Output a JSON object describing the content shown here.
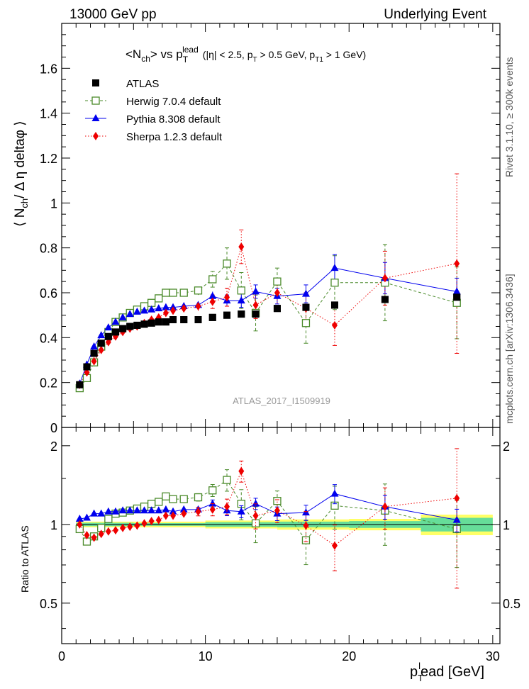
{
  "header": {
    "left": "13000 GeV pp",
    "right": "Underlying Event"
  },
  "side": {
    "rivet": "Rivet 3.1.10, ≥ 300k events",
    "mcplots": "mcplots.cern.ch [arXiv:1306.3436]"
  },
  "watermark": "ATLAS_2017_I1509919",
  "chart_data": [
    {
      "type": "scatter",
      "title": "<N_ch> vs p_T^lead (|η| < 2.5, p_T > 0.5 GeV, p_T1 > 1 GeV)",
      "ylabel": "⟨ N_ch / Δ η deltaφ ⟩",
      "xlabel": "p_T^lead [GeV]",
      "xlim": [
        0,
        30.5
      ],
      "ylim": [
        0,
        1.8
      ],
      "yticks": [
        0,
        0.2,
        0.4,
        0.6,
        0.8,
        1,
        1.2,
        1.4,
        1.6
      ],
      "grid": false,
      "legend": "top-left",
      "series": [
        {
          "name": "ATLAS",
          "color": "#000000",
          "marker": "square",
          "line": "none",
          "x": [
            1.25,
            1.75,
            2.25,
            2.75,
            3.25,
            3.75,
            4.25,
            4.75,
            5.25,
            5.75,
            6.25,
            6.75,
            7.25,
            7.75,
            8.5,
            9.5,
            10.5,
            11.5,
            12.5,
            13.5,
            15,
            17,
            19,
            22.5,
            27.5
          ],
          "y": [
            0.19,
            0.27,
            0.33,
            0.375,
            0.405,
            0.425,
            0.44,
            0.45,
            0.455,
            0.46,
            0.465,
            0.47,
            0.47,
            0.48,
            0.48,
            0.48,
            0.49,
            0.5,
            0.505,
            0.505,
            0.53,
            0.535,
            0.545,
            0.57,
            0.58
          ]
        },
        {
          "name": "Herwig 7.0.4 default",
          "color": "#4a8a2a",
          "marker": "open-square",
          "line": "dashed",
          "x": [
            1.25,
            1.75,
            2.25,
            2.75,
            3.25,
            3.75,
            4.25,
            4.75,
            5.25,
            5.75,
            6.25,
            6.75,
            7.25,
            7.75,
            8.5,
            9.5,
            10.5,
            11.5,
            12.5,
            13.5,
            15,
            17,
            19,
            22.5,
            27.5
          ],
          "y": [
            0.175,
            0.22,
            0.29,
            0.36,
            0.425,
            0.47,
            0.49,
            0.51,
            0.525,
            0.54,
            0.555,
            0.575,
            0.6,
            0.6,
            0.6,
            0.61,
            0.66,
            0.73,
            0.61,
            0.51,
            0.65,
            0.465,
            0.645,
            0.645,
            0.555
          ],
          "err": [
            0.005,
            0.005,
            0.006,
            0.007,
            0.007,
            0.008,
            0.008,
            0.009,
            0.01,
            0.011,
            0.012,
            0.013,
            0.014,
            0.015,
            0.016,
            0.02,
            0.035,
            0.07,
            0.08,
            0.08,
            0.06,
            0.09,
            0.12,
            0.17,
            0.16
          ]
        },
        {
          "name": "Pythia 8.308 default",
          "color": "#0000ee",
          "marker": "triangle",
          "line": "solid",
          "x": [
            1.25,
            1.75,
            2.25,
            2.75,
            3.25,
            3.75,
            4.25,
            4.75,
            5.25,
            5.75,
            6.25,
            6.75,
            7.25,
            7.75,
            8.5,
            9.5,
            10.5,
            11.5,
            12.5,
            13.5,
            15,
            17,
            19,
            22.5,
            27.5
          ],
          "y": [
            0.195,
            0.28,
            0.36,
            0.41,
            0.445,
            0.47,
            0.49,
            0.505,
            0.515,
            0.52,
            0.525,
            0.53,
            0.535,
            0.535,
            0.54,
            0.545,
            0.585,
            0.565,
            0.565,
            0.605,
            0.585,
            0.595,
            0.71,
            0.665,
            0.605
          ],
          "err": [
            0.004,
            0.004,
            0.005,
            0.005,
            0.006,
            0.006,
            0.007,
            0.007,
            0.008,
            0.008,
            0.009,
            0.01,
            0.011,
            0.012,
            0.013,
            0.015,
            0.02,
            0.025,
            0.03,
            0.03,
            0.035,
            0.04,
            0.06,
            0.07,
            0.06
          ]
        },
        {
          "name": "Sherpa 1.2.3 default",
          "color": "#ee0000",
          "marker": "diamond",
          "line": "dotted",
          "x": [
            1.25,
            1.75,
            2.25,
            2.75,
            3.25,
            3.75,
            4.25,
            4.75,
            5.25,
            5.75,
            6.25,
            6.75,
            7.25,
            7.75,
            8.5,
            9.5,
            10.5,
            11.5,
            12.5,
            13.5,
            15,
            17,
            19,
            22.5,
            27.5
          ],
          "y": [
            0.19,
            0.245,
            0.295,
            0.345,
            0.38,
            0.405,
            0.425,
            0.44,
            0.45,
            0.465,
            0.48,
            0.49,
            0.51,
            0.52,
            0.53,
            0.54,
            0.56,
            0.58,
            0.805,
            0.545,
            0.6,
            0.53,
            0.455,
            0.665,
            0.73
          ],
          "err": [
            0.005,
            0.005,
            0.006,
            0.006,
            0.007,
            0.007,
            0.008,
            0.009,
            0.01,
            0.011,
            0.012,
            0.013,
            0.014,
            0.015,
            0.016,
            0.02,
            0.03,
            0.04,
            0.075,
            0.06,
            0.06,
            0.07,
            0.09,
            0.12,
            0.4
          ]
        }
      ]
    },
    {
      "type": "scatter",
      "ylabel": "Ratio to ATLAS",
      "xlabel": "p_T^lead [GeV]",
      "xlim": [
        0,
        30.5
      ],
      "ylim": [
        0.35,
        2.35
      ],
      "yticks": [
        0.5,
        1,
        2
      ],
      "log_y": true,
      "xticks": [
        0,
        10,
        20,
        30
      ],
      "uncertainty_band": {
        "stat_color": "#66dd99",
        "total_color": "#ffff66",
        "x": [
          1.0,
          5.0,
          10.0,
          15.0,
          20.0,
          25.0,
          30.0
        ],
        "stat": [
          0.015,
          0.012,
          0.02,
          0.025,
          0.03,
          0.06,
          0.06
        ],
        "total": [
          0.025,
          0.025,
          0.035,
          0.045,
          0.05,
          0.09,
          0.1
        ]
      },
      "series": [
        {
          "name": "Herwig 7.0.4 default",
          "y": [
            0.96,
            0.86,
            0.9,
            0.97,
            1.05,
            1.1,
            1.11,
            1.13,
            1.15,
            1.17,
            1.2,
            1.22,
            1.28,
            1.25,
            1.25,
            1.27,
            1.35,
            1.48,
            1.2,
            1.01,
            1.23,
            0.87,
            1.18,
            1.13,
            0.96
          ]
        },
        {
          "name": "Pythia 8.308 default",
          "y": [
            1.05,
            1.06,
            1.1,
            1.1,
            1.12,
            1.12,
            1.13,
            1.13,
            1.13,
            1.13,
            1.13,
            1.13,
            1.14,
            1.12,
            1.14,
            1.14,
            1.2,
            1.13,
            1.12,
            1.2,
            1.1,
            1.11,
            1.31,
            1.17,
            1.04
          ]
        },
        {
          "name": "Sherpa 1.2.3 default",
          "y": [
            1.0,
            0.91,
            0.89,
            0.92,
            0.94,
            0.95,
            0.97,
            0.98,
            0.99,
            1.01,
            1.03,
            1.04,
            1.08,
            1.08,
            1.1,
            1.12,
            1.14,
            1.17,
            1.6,
            1.08,
            1.13,
            0.99,
            0.83,
            1.17,
            1.26
          ]
        }
      ]
    }
  ]
}
